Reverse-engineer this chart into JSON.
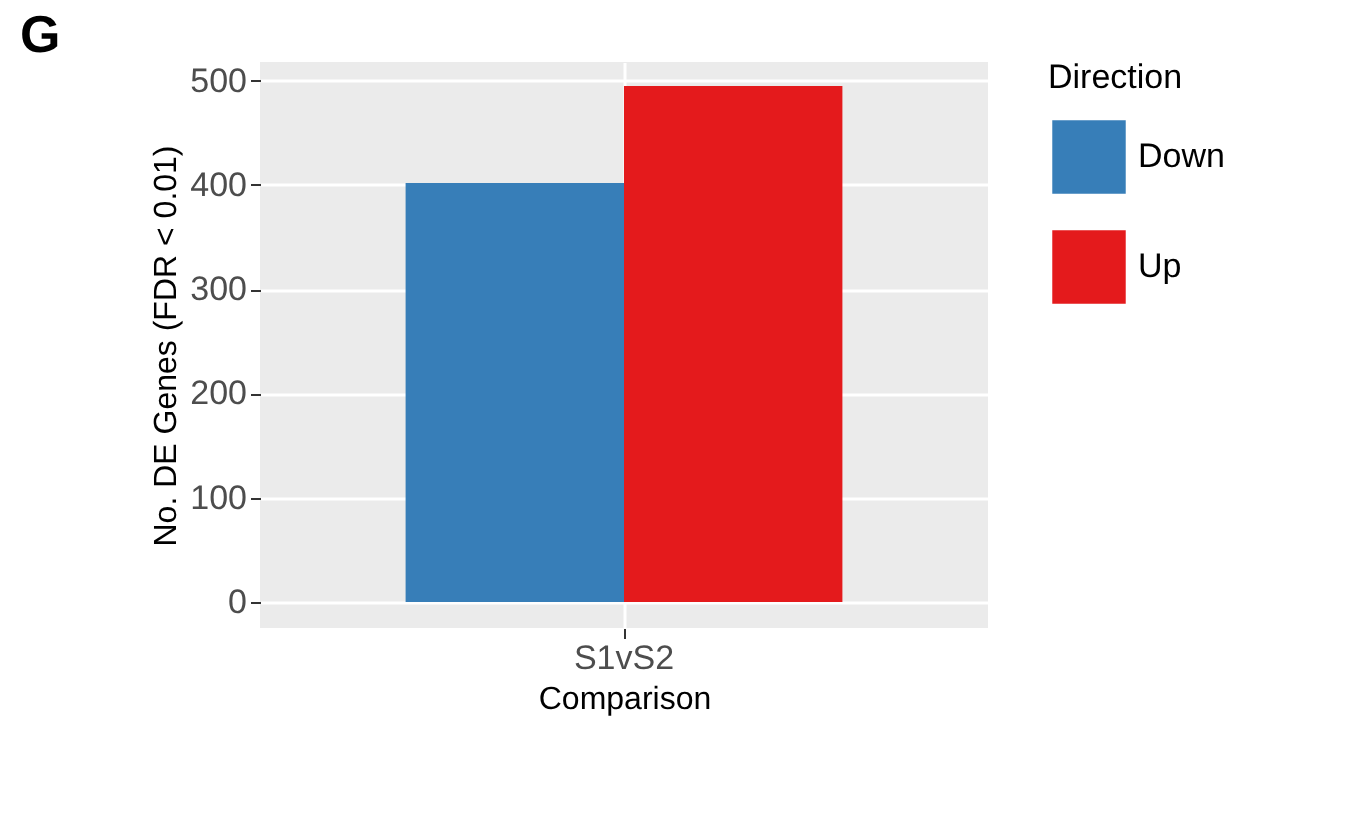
{
  "chart_data": {
    "type": "bar",
    "title": "G",
    "xlabel": "Comparison",
    "ylabel": "No. DE Genes (FDR < 0.01)",
    "legend_title": "Direction",
    "categories": [
      "S1vS2"
    ],
    "series": [
      {
        "name": "Down",
        "color": "#377eb8",
        "values": [
          402
        ]
      },
      {
        "name": "Up",
        "color": "#e41a1c",
        "values": [
          495
        ]
      }
    ],
    "ylim": [
      -25,
      518
    ],
    "yticks": [
      0,
      100,
      200,
      300,
      400,
      500
    ],
    "grid": true,
    "legend": "right"
  }
}
